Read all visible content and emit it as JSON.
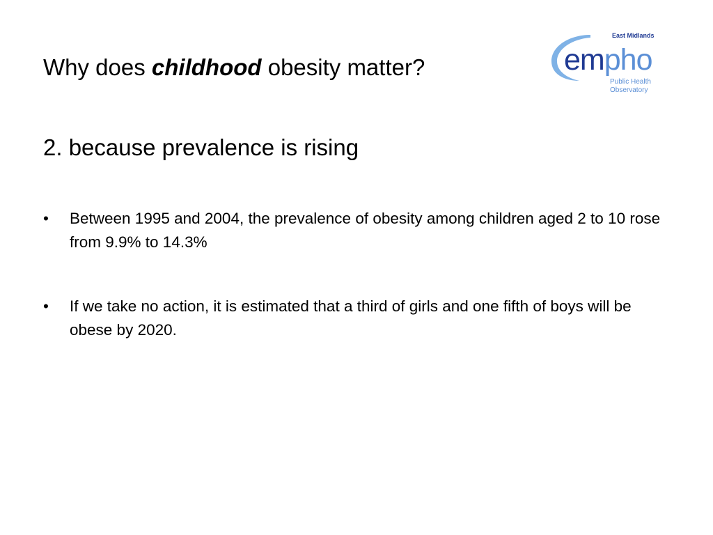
{
  "slide": {
    "title_prefix": "Why does ",
    "title_emphasis": "childhood",
    "title_suffix": " obesity matter?",
    "subtitle": "2. because prevalence is rising",
    "bullet_symbol": "•",
    "bullets": [
      "Between 1995 and 2004, the prevalence of obesity among children aged 2 to 10 rose from 9.9% to 14.3%",
      "If we take no action, it is estimated that a third of girls and one fifth of boys will be obese by 2020."
    ]
  },
  "logo": {
    "region": "East Midlands",
    "brand_em": "em",
    "brand_pho": "pho",
    "line1": "Public Health",
    "line2": "Observatory",
    "colors": {
      "navy": "#1f3a93",
      "light_blue": "#5b8fd6",
      "swoosh": "#7fb2e6"
    }
  }
}
